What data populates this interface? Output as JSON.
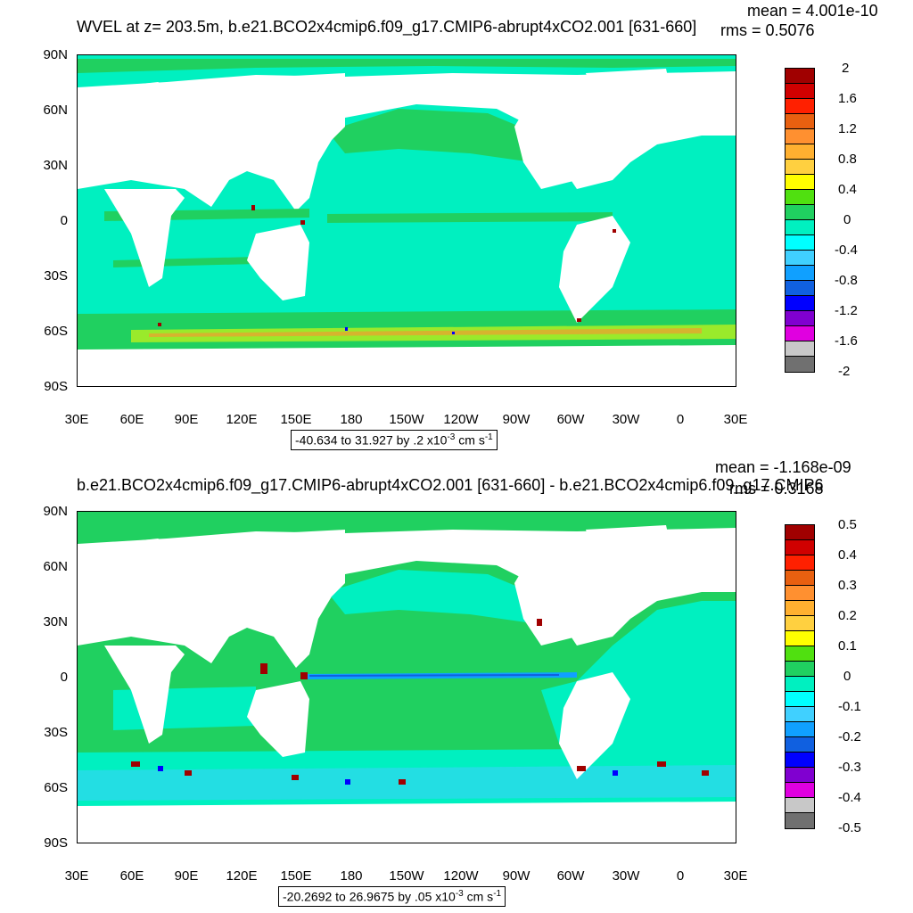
{
  "panels": [
    {
      "title": "WVEL at z= 203.5m, b.e21.BCO2x4cmip6.f09_g17.CMIP6-abrupt4xCO2.001 [631-660]",
      "stat_mean": "mean = 4.001e-10",
      "stat_rms": "rms = 0.5076",
      "range_text": "-40.634 to 31.927 by .2 x10",
      "range_exp": "-3",
      "range_unit": " cm s",
      "range_unit_exp": "-1",
      "colorbar_labels": [
        "2",
        "1.6",
        "1.2",
        "0.8",
        "0.4",
        "0",
        "-0.4",
        "-0.8",
        "-1.2",
        "-1.6",
        "-2"
      ]
    },
    {
      "title": "b.e21.BCO2x4cmip6.f09_g17.CMIP6-abrupt4xCO2.001 [631-660] - b.e21.BCO2x4cmip6.f09_g17.CMIP6",
      "stat_mean": "mean = -1.168e-09",
      "stat_rms": "rms = 0.3168",
      "range_text": "-20.2692 to 26.9675 by .05 x10",
      "range_exp": "-3",
      "range_unit": " cm s",
      "range_unit_exp": "-1",
      "colorbar_labels": [
        "0.5",
        "0.4",
        "0.3",
        "0.2",
        "0.1",
        "0",
        "-0.1",
        "-0.2",
        "-0.3",
        "-0.4",
        "-0.5"
      ]
    }
  ],
  "lat_labels": [
    "90N",
    "60N",
    "30N",
    "0",
    "30S",
    "60S",
    "90S"
  ],
  "lon_labels": [
    "30E",
    "60E",
    "90E",
    "120E",
    "150E",
    "180",
    "150W",
    "120W",
    "90W",
    "60W",
    "30W",
    "0",
    "30E"
  ],
  "colorbar_colors": [
    "#a00000",
    "#d00000",
    "#ff2000",
    "#e86010",
    "#ff9030",
    "#ffb030",
    "#ffd040",
    "#ffff00",
    "#50e010",
    "#20d060",
    "#00f0c0",
    "#00ffff",
    "#40d0ff",
    "#10a0ff",
    "#1060e0",
    "#0000ff",
    "#8000d0",
    "#e000e0",
    "#c8c8c8",
    "#707070"
  ],
  "colors": {
    "ocean_base": "#00f0c0",
    "ocean_green": "#20d060",
    "land": "#ffffff"
  }
}
